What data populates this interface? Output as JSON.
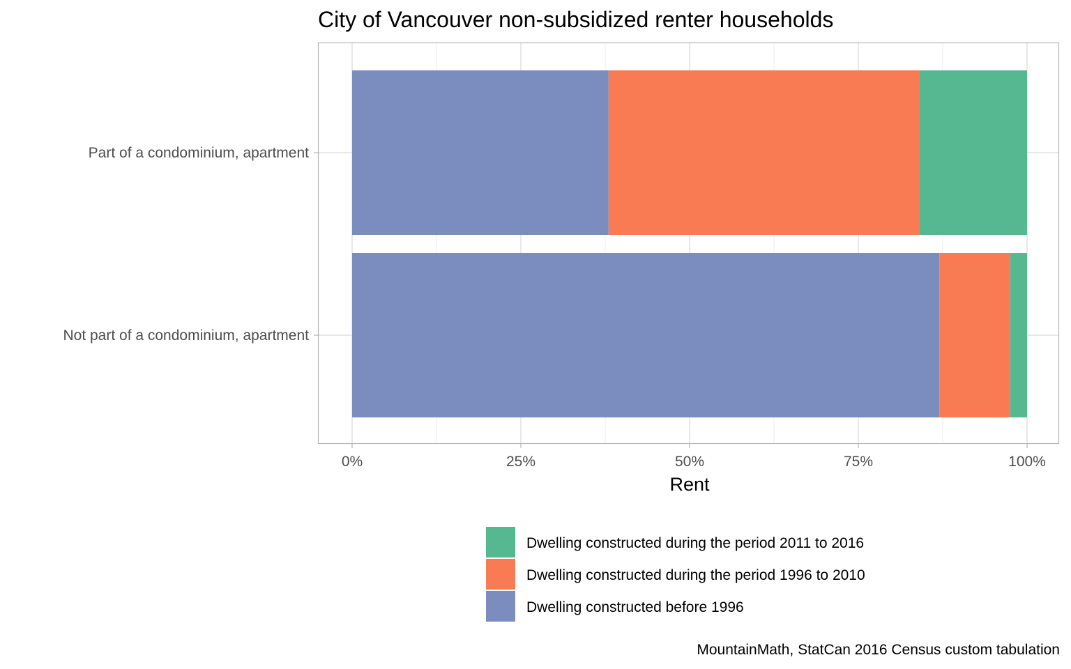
{
  "chart_data": {
    "type": "bar",
    "orientation": "horizontal",
    "stacked": "fill",
    "title": "City of Vancouver non-subsidized renter households",
    "xlabel": "Rent",
    "ylabel": "",
    "xlim": [
      0,
      1
    ],
    "x_ticks": [
      {
        "value": 0,
        "label": "0%"
      },
      {
        "value": 0.25,
        "label": "25%"
      },
      {
        "value": 0.5,
        "label": "50%"
      },
      {
        "value": 0.75,
        "label": "75%"
      },
      {
        "value": 1,
        "label": "100%"
      }
    ],
    "categories": [
      "Part of a condominium, apartment",
      "Not part of a condominium, apartment"
    ],
    "series": [
      {
        "name": "Dwelling constructed before 1996",
        "color": "#7b8dbf",
        "values": [
          0.38,
          0.87
        ]
      },
      {
        "name": "Dwelling constructed during the period 1996 to 2010",
        "color": "#f97b54",
        "values": [
          0.46,
          0.105
        ]
      },
      {
        "name": "Dwelling constructed during the period 2011 to 2016",
        "color": "#56b891",
        "values": [
          0.16,
          0.025
        ]
      }
    ],
    "legend": {
      "position": "bottom",
      "order": [
        "Dwelling constructed during the period 2011 to 2016",
        "Dwelling constructed during the period 1996 to 2010",
        "Dwelling constructed before 1996"
      ]
    },
    "grid": true,
    "caption": "MountainMath, StatCan 2016 Census custom tabulation"
  },
  "colors": {
    "panel_border": "#b3b3b3",
    "grid_major": "#d9d9d9",
    "grid_minor": "#ececec",
    "tick_mark": "#b3b3b3"
  }
}
